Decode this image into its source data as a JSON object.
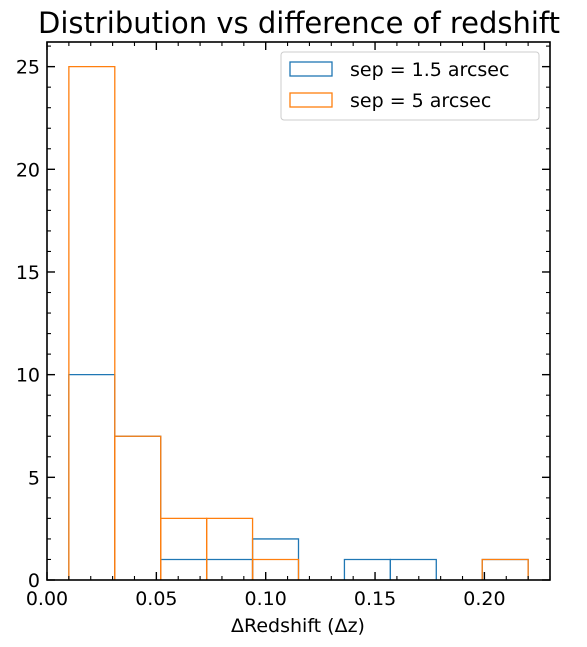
{
  "chart_data": {
    "type": "bar",
    "title": "Distribution vs difference of redshift",
    "xlabel": "ΔRedshift (Δz)",
    "ylabel": "",
    "xlim": [
      0.0,
      0.23
    ],
    "ylim": [
      0,
      26.2
    ],
    "xticks": [
      {
        "value": 0.0,
        "label": "0.00"
      },
      {
        "value": 0.05,
        "label": "0.05"
      },
      {
        "value": 0.1,
        "label": "0.10"
      },
      {
        "value": 0.15,
        "label": "0.15"
      },
      {
        "value": 0.2,
        "label": "0.20"
      }
    ],
    "yticks": [
      {
        "value": 0,
        "label": "0"
      },
      {
        "value": 5,
        "label": "5"
      },
      {
        "value": 10,
        "label": "10"
      },
      {
        "value": 15,
        "label": "15"
      },
      {
        "value": 20,
        "label": "20"
      },
      {
        "value": 25,
        "label": "25"
      }
    ],
    "legend_position": "top-right",
    "series": [
      {
        "name": "sep = 1.5 arcsec",
        "color": "#1f77b4",
        "bin_edges": [
          0.01,
          0.031,
          0.052,
          0.073,
          0.094,
          0.115,
          0.136,
          0.157,
          0.178,
          0.199,
          0.22
        ],
        "counts": [
          10,
          7,
          1,
          1,
          2,
          0,
          1,
          1,
          0,
          1
        ]
      },
      {
        "name": "sep = 5 arcsec",
        "color": "#ff7f0e",
        "bin_edges": [
          0.01,
          0.031,
          0.052,
          0.073,
          0.094,
          0.115,
          0.136,
          0.157,
          0.178,
          0.199,
          0.22
        ],
        "counts": [
          25,
          7,
          3,
          3,
          1,
          0,
          0,
          0,
          0,
          1
        ]
      }
    ]
  }
}
